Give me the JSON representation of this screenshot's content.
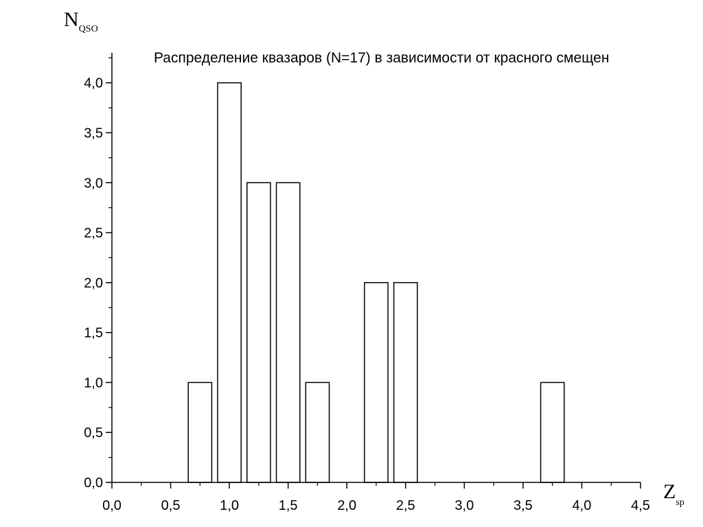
{
  "chart_data": {
    "type": "bar",
    "title": "Распределение квазаров (N=17) в зависимости от красного смещен",
    "ylabel": {
      "main": "N",
      "sub": "QSO"
    },
    "xlabel": {
      "main": "Z",
      "sub": "sp"
    },
    "xlim": [
      0,
      4.5
    ],
    "ylim": [
      0,
      4.3
    ],
    "bin_width": 0.2,
    "bins": [
      {
        "center": 0.75,
        "value": 1
      },
      {
        "center": 1.0,
        "value": 4
      },
      {
        "center": 1.25,
        "value": 3
      },
      {
        "center": 1.5,
        "value": 3
      },
      {
        "center": 1.75,
        "value": 1
      },
      {
        "center": 2.25,
        "value": 2
      },
      {
        "center": 2.5,
        "value": 2
      },
      {
        "center": 3.75,
        "value": 1
      }
    ],
    "x_ticks": [
      "0,0",
      "0,5",
      "1,0",
      "1,5",
      "2,0",
      "2,5",
      "3,0",
      "3,5",
      "4,0",
      "4,5"
    ],
    "y_ticks": [
      "0,0",
      "0,5",
      "1,0",
      "1,5",
      "2,0",
      "2,5",
      "3,0",
      "3,5",
      "4,0"
    ],
    "x_tick_values": [
      0,
      0.5,
      1,
      1.5,
      2,
      2.5,
      3,
      3.5,
      4,
      4.5
    ],
    "y_tick_values": [
      0,
      0.5,
      1,
      1.5,
      2,
      2.5,
      3,
      3.5,
      4
    ],
    "grid": false,
    "legend": "none",
    "bar_fill": "#ffffff",
    "bar_stroke": "#000000"
  }
}
